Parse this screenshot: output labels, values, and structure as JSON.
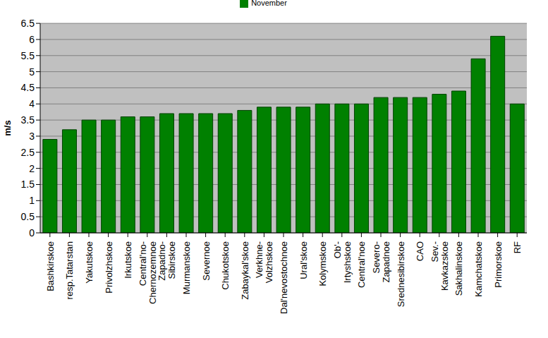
{
  "chart_data": {
    "type": "bar",
    "ylabel": "m/s",
    "categories": [
      "Bashkirskoe",
      "resp.Tatarstan",
      "Yakutskoe",
      "Privolzhskoe",
      "Irkutskoe",
      "Central'no-Chernozemnoe",
      "Zapadno-Sibirskoe",
      "Murmanskoe",
      "Severnoe",
      "Chukotskoe",
      "Zabaykal'skoe",
      "Verkhne-Volzhskoe",
      "Dal'nevostochnoe",
      "Ural'skoe",
      "Kolymskoe",
      "Ob'-Irtyshskoe",
      "Central'noe",
      "Severo-Zapadnoe",
      "Srednesibirskoe",
      "CAO",
      "Sev.-Kavkazskoe",
      "Sakhalinskoe",
      "Kamchatskoe",
      "Primorskoe",
      "RF"
    ],
    "series": [
      {
        "name": "November",
        "color": "#008000",
        "values": [
          2.9,
          3.2,
          3.5,
          3.5,
          3.6,
          3.6,
          3.7,
          3.7,
          3.7,
          3.7,
          3.8,
          3.9,
          3.9,
          3.9,
          4.0,
          4.0,
          4.0,
          4.2,
          4.2,
          4.2,
          4.3,
          4.4,
          5.4,
          6.1,
          4.0
        ]
      }
    ],
    "ylim": [
      0,
      6.5
    ],
    "yticks": [
      0,
      0.5,
      1,
      1.5,
      2,
      2.5,
      3,
      3.5,
      4,
      4.5,
      5,
      5.5,
      6,
      6.5
    ],
    "grid": true,
    "legend": "top"
  }
}
